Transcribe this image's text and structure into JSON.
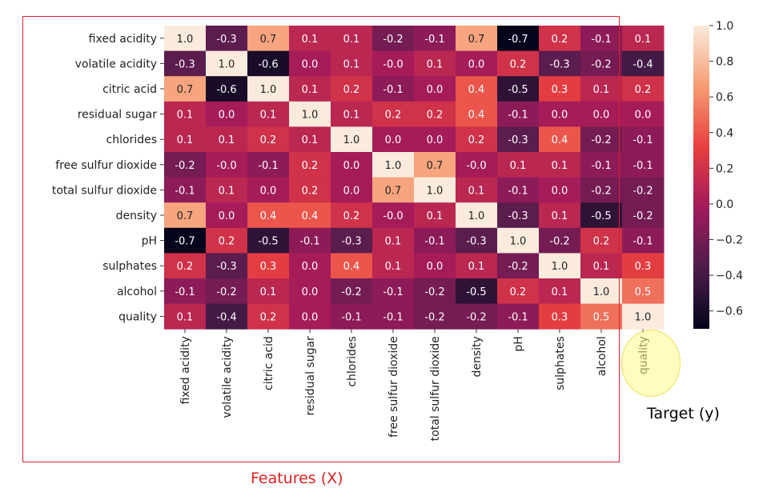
{
  "annotations": {
    "features_label": "Features (X)",
    "target_label": "Target (y)"
  },
  "chart_data": {
    "type": "heatmap",
    "title": "",
    "xlabel": "",
    "ylabel": "",
    "labels": [
      "fixed acidity",
      "volatile acidity",
      "citric acid",
      "residual sugar",
      "chlorides",
      "free sulfur dioxide",
      "total sulfur dioxide",
      "density",
      "pH",
      "sulphates",
      "alcohol",
      "quality"
    ],
    "values": [
      [
        1.0,
        -0.3,
        0.7,
        0.1,
        0.1,
        -0.2,
        -0.1,
        0.7,
        -0.7,
        0.2,
        -0.1,
        0.1
      ],
      [
        -0.3,
        1.0,
        -0.6,
        0.0,
        0.1,
        -0.0,
        0.1,
        0.0,
        0.2,
        -0.3,
        -0.2,
        -0.4
      ],
      [
        0.7,
        -0.6,
        1.0,
        0.1,
        0.2,
        -0.1,
        0.0,
        0.4,
        -0.5,
        0.3,
        0.1,
        0.2
      ],
      [
        0.1,
        0.0,
        0.1,
        1.0,
        0.1,
        0.2,
        0.2,
        0.4,
        -0.1,
        0.0,
        0.0,
        0.0
      ],
      [
        0.1,
        0.1,
        0.2,
        0.1,
        1.0,
        0.0,
        0.0,
        0.2,
        -0.3,
        0.4,
        -0.2,
        -0.1
      ],
      [
        -0.2,
        -0.0,
        -0.1,
        0.2,
        0.0,
        1.0,
        0.7,
        -0.0,
        0.1,
        0.1,
        -0.1,
        -0.1
      ],
      [
        -0.1,
        0.1,
        0.0,
        0.2,
        0.0,
        0.7,
        1.0,
        0.1,
        -0.1,
        0.0,
        -0.2,
        -0.2
      ],
      [
        0.7,
        0.0,
        0.4,
        0.4,
        0.2,
        -0.0,
        0.1,
        1.0,
        -0.3,
        0.1,
        -0.5,
        -0.2
      ],
      [
        -0.7,
        0.2,
        -0.5,
        -0.1,
        -0.3,
        0.1,
        -0.1,
        -0.3,
        1.0,
        -0.2,
        0.2,
        -0.1
      ],
      [
        0.2,
        -0.3,
        0.3,
        0.0,
        0.4,
        0.1,
        0.0,
        0.1,
        -0.2,
        1.0,
        0.1,
        0.3
      ],
      [
        -0.1,
        -0.2,
        0.1,
        0.0,
        -0.2,
        -0.1,
        -0.2,
        -0.5,
        0.2,
        0.1,
        1.0,
        0.5
      ],
      [
        0.1,
        -0.4,
        0.2,
        0.0,
        -0.1,
        -0.1,
        -0.2,
        -0.2,
        -0.1,
        0.3,
        0.5,
        1.0
      ]
    ],
    "value_labels": [
      [
        "1.0",
        "-0.3",
        "0.7",
        "0.1",
        "0.1",
        "-0.2",
        "-0.1",
        "0.7",
        "-0.7",
        "0.2",
        "-0.1",
        "0.1"
      ],
      [
        "-0.3",
        "1.0",
        "-0.6",
        "0.0",
        "0.1",
        "-0.0",
        "0.1",
        "0.0",
        "0.2",
        "-0.3",
        "-0.2",
        "-0.4"
      ],
      [
        "0.7",
        "-0.6",
        "1.0",
        "0.1",
        "0.2",
        "-0.1",
        "0.0",
        "0.4",
        "-0.5",
        "0.3",
        "0.1",
        "0.2"
      ],
      [
        "0.1",
        "0.0",
        "0.1",
        "1.0",
        "0.1",
        "0.2",
        "0.2",
        "0.4",
        "-0.1",
        "0.0",
        "0.0",
        "0.0"
      ],
      [
        "0.1",
        "0.1",
        "0.2",
        "0.1",
        "1.0",
        "0.0",
        "0.0",
        "0.2",
        "-0.3",
        "0.4",
        "-0.2",
        "-0.1"
      ],
      [
        "-0.2",
        "-0.0",
        "-0.1",
        "0.2",
        "0.0",
        "1.0",
        "0.7",
        "-0.0",
        "0.1",
        "0.1",
        "-0.1",
        "-0.1"
      ],
      [
        "-0.1",
        "0.1",
        "0.0",
        "0.2",
        "0.0",
        "0.7",
        "1.0",
        "0.1",
        "-0.1",
        "0.0",
        "-0.2",
        "-0.2"
      ],
      [
        "0.7",
        "0.0",
        "0.4",
        "0.4",
        "0.2",
        "-0.0",
        "0.1",
        "1.0",
        "-0.3",
        "0.1",
        "-0.5",
        "-0.2"
      ],
      [
        "-0.7",
        "0.2",
        "-0.5",
        "-0.1",
        "-0.3",
        "0.1",
        "-0.1",
        "-0.3",
        "1.0",
        "-0.2",
        "0.2",
        "-0.1"
      ],
      [
        "0.2",
        "-0.3",
        "0.3",
        "0.0",
        "0.4",
        "0.1",
        "0.0",
        "0.1",
        "-0.2",
        "1.0",
        "0.1",
        "0.3"
      ],
      [
        "-0.1",
        "-0.2",
        "0.1",
        "0.0",
        "-0.2",
        "-0.1",
        "-0.2",
        "-0.5",
        "0.2",
        "0.1",
        "1.0",
        "0.5"
      ],
      [
        "0.1",
        "-0.4",
        "0.2",
        "0.0",
        "-0.1",
        "-0.1",
        "-0.2",
        "-0.2",
        "-0.1",
        "0.3",
        "0.5",
        "1.0"
      ]
    ],
    "colorbar": {
      "min": -0.7,
      "max": 1.0,
      "ticks": [
        1.0,
        0.8,
        0.6,
        0.4,
        0.2,
        0.0,
        -0.2,
        -0.4,
        -0.6
      ],
      "tick_labels": [
        "1.0",
        "0.8",
        "0.6",
        "0.4",
        "0.2",
        "0.0",
        "−0.2",
        "−0.4",
        "−0.6"
      ]
    },
    "colormap": "rocket",
    "grid": false
  }
}
